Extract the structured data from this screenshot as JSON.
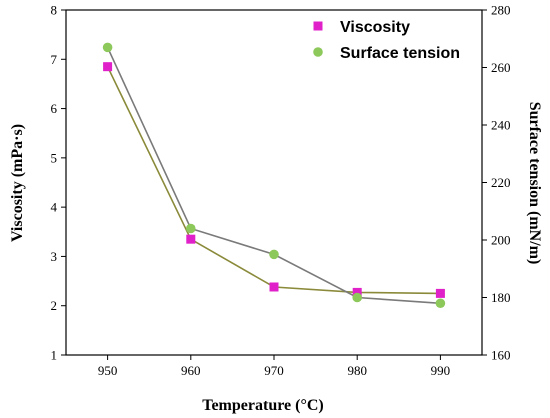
{
  "chart_data": {
    "type": "line",
    "x": [
      950,
      960,
      970,
      980,
      990
    ],
    "xlim": [
      945,
      995
    ],
    "xticks": [
      "950",
      "960",
      "970",
      "980",
      "990"
    ],
    "xlabel": "Temperature (°C)",
    "y_left": {
      "label": "Viscosity (mPa·s)",
      "lim": [
        1,
        8
      ],
      "ticks": [
        "1",
        "2",
        "3",
        "4",
        "5",
        "6",
        "7",
        "8"
      ]
    },
    "y_right": {
      "label": "Surface tension (mN/m)",
      "lim": [
        160,
        280
      ],
      "ticks": [
        "160",
        "180",
        "200",
        "220",
        "240",
        "260",
        "280"
      ]
    },
    "series": [
      {
        "name": "Viscosity",
        "axis": "left",
        "values": [
          6.85,
          3.35,
          2.38,
          2.27,
          2.25
        ],
        "marker": "square",
        "marker_color": "#e020c8",
        "line_color": "#8a8a3a"
      },
      {
        "name": "Surface tension",
        "axis": "right",
        "values": [
          267,
          204,
          195,
          180,
          178
        ],
        "marker": "circle",
        "marker_color": "#8dc85a",
        "line_color": "#7a7a7a"
      }
    ],
    "legend": "top-right",
    "grid": false
  }
}
